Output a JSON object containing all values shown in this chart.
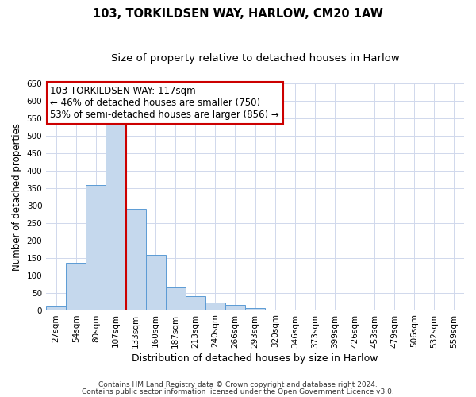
{
  "title": "103, TORKILDSEN WAY, HARLOW, CM20 1AW",
  "subtitle": "Size of property relative to detached houses in Harlow",
  "xlabel": "Distribution of detached houses by size in Harlow",
  "ylabel": "Number of detached properties",
  "bin_labels": [
    "27sqm",
    "54sqm",
    "80sqm",
    "107sqm",
    "133sqm",
    "160sqm",
    "187sqm",
    "213sqm",
    "240sqm",
    "266sqm",
    "293sqm",
    "320sqm",
    "346sqm",
    "373sqm",
    "399sqm",
    "426sqm",
    "453sqm",
    "479sqm",
    "506sqm",
    "532sqm",
    "559sqm"
  ],
  "bar_heights": [
    10,
    135,
    358,
    535,
    290,
    158,
    65,
    40,
    22,
    14,
    5,
    0,
    0,
    0,
    0,
    0,
    2,
    0,
    0,
    0,
    2
  ],
  "bar_color": "#c5d8ed",
  "bar_edge_color": "#5b9bd5",
  "vline_color": "#cc0000",
  "annotation_text": "103 TORKILDSEN WAY: 117sqm\n← 46% of detached houses are smaller (750)\n53% of semi-detached houses are larger (856) →",
  "annotation_box_color": "#ffffff",
  "annotation_box_edge_color": "#cc0000",
  "ylim": [
    0,
    650
  ],
  "yticks": [
    0,
    50,
    100,
    150,
    200,
    250,
    300,
    350,
    400,
    450,
    500,
    550,
    600,
    650
  ],
  "footer1": "Contains HM Land Registry data © Crown copyright and database right 2024.",
  "footer2": "Contains public sector information licensed under the Open Government Licence v3.0.",
  "bg_color": "#ffffff",
  "grid_color": "#d0d8ec",
  "title_fontsize": 10.5,
  "subtitle_fontsize": 9.5,
  "xlabel_fontsize": 9,
  "ylabel_fontsize": 8.5,
  "tick_fontsize": 7.5,
  "annotation_fontsize": 8.5,
  "footer_fontsize": 6.5
}
